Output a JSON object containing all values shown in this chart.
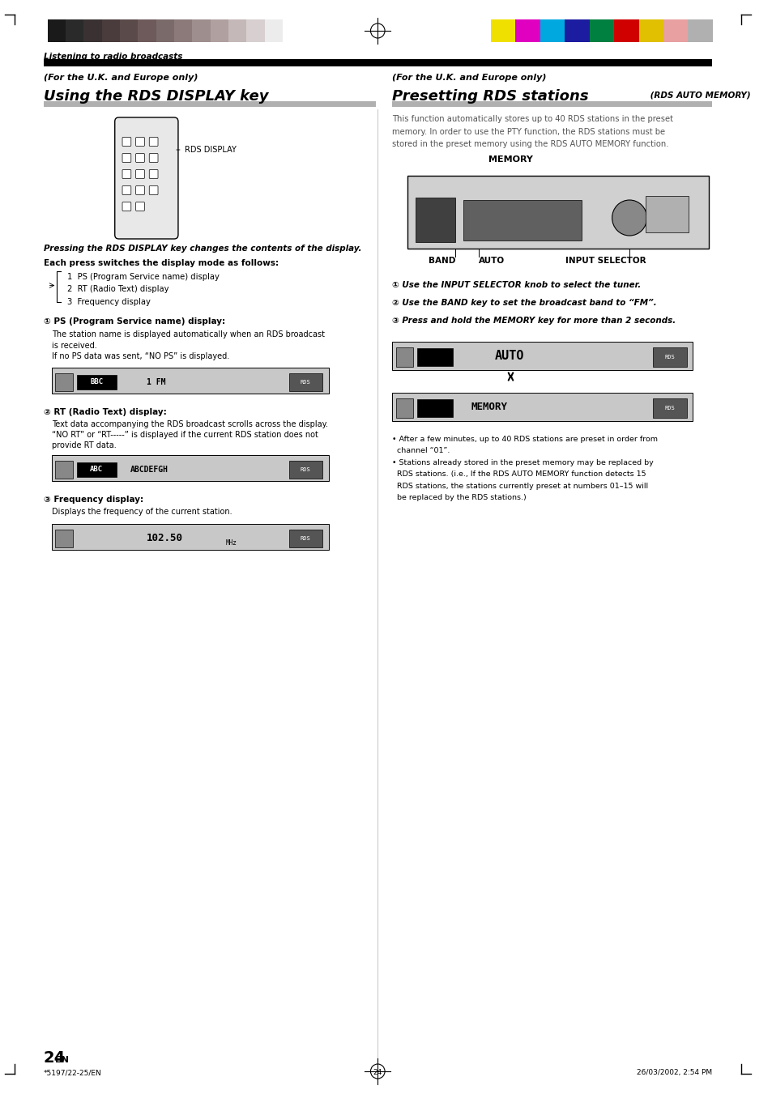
{
  "page_bg": "#ffffff",
  "page_width": 9.54,
  "page_height": 13.51,
  "dpi": 100,
  "header_bar_colors_left": [
    "#1a1a1a",
    "#2a2a2a",
    "#3a3232",
    "#4a3c3c",
    "#5a4a4a",
    "#6e5a5a",
    "#7a6a6a",
    "#8c7a7a",
    "#9e8e8e",
    "#b0a0a0",
    "#c4b8b8",
    "#d8d0d0",
    "#ececec",
    "#ffffff"
  ],
  "header_bar_colors_right": [
    "#f0e000",
    "#e000c0",
    "#00a8e0",
    "#1c1ca0",
    "#008040",
    "#d00000",
    "#e0c000",
    "#e8a0a0",
    "#b0b0b0"
  ],
  "left_section_title_italic": "(For the U.K. and Europe only)",
  "left_section_title": "Using the RDS DISPLAY key",
  "right_section_title_italic": "(For the U.K. and Europe only)",
  "right_section_title_main": "Presetting RDS stations",
  "right_section_title_sub": " (RDS AUTO MEMORY)",
  "right_intro": "This function automatically stores up to 40 RDS stations in the preset memory. In order to use the PTY function, the RDS stations must be stored in the preset memory using the RDS AUTO MEMORY function.",
  "section_header_label": "Listening to radio broadcasts",
  "left_body_title": "Pressing the RDS DISPLAY key changes the contents of the display.",
  "left_body_sub": "Each press switches the display mode as follows:",
  "list_items": [
    "1  PS (Program Service name) display",
    "2  RT (Radio Text) display",
    "3  Frequency display"
  ],
  "ps_title": "① PS (Program Service name) display:",
  "ps_body1": "The station name is displayed automatically when an RDS broadcast",
  "ps_body2": "is received.",
  "ps_body3": "If no PS data was sent, “NO PS” is displayed.",
  "rt_title": "② RT (Radio Text) display:",
  "rt_body1": "Text data accompanying the RDS broadcast scrolls across the display.",
  "rt_body2": "“NO RT” or “RT-----” is displayed if the current RDS station does not",
  "rt_body3": "provide RT data.",
  "freq_title": "③ Frequency display:",
  "freq_body": "Displays the frequency of the current station.",
  "right_step1": "① Use the INPUT SELECTOR knob to select the tuner.",
  "right_step2": "② Use the BAND key to set the broadcast band to “FM”.",
  "right_step3": "③ Press and hold the MEMORY key for more than 2 seconds.",
  "bullet1": "• After a few minutes, up to 40 RDS stations are preset in order from channel “01”.",
  "bullet2": "• Stations already stored in the preset memory may be replaced by RDS stations. (i.e., If the RDS AUTO MEMORY function detects 15 RDS stations, the stations currently preset at numbers 01–15 will be replaced by the RDS stations.)",
  "page_number": "24",
  "page_footer_left": "*5197/22-25/EN",
  "page_footer_center": "24",
  "page_footer_right": "26/03/2002, 2:54 PM",
  "memory_label": "MEMORY",
  "band_label": "BAND",
  "auto_label": "AUTO",
  "input_sel_label": "INPUT SELECTOR",
  "rds_display_label": "RDS DISPLAY"
}
